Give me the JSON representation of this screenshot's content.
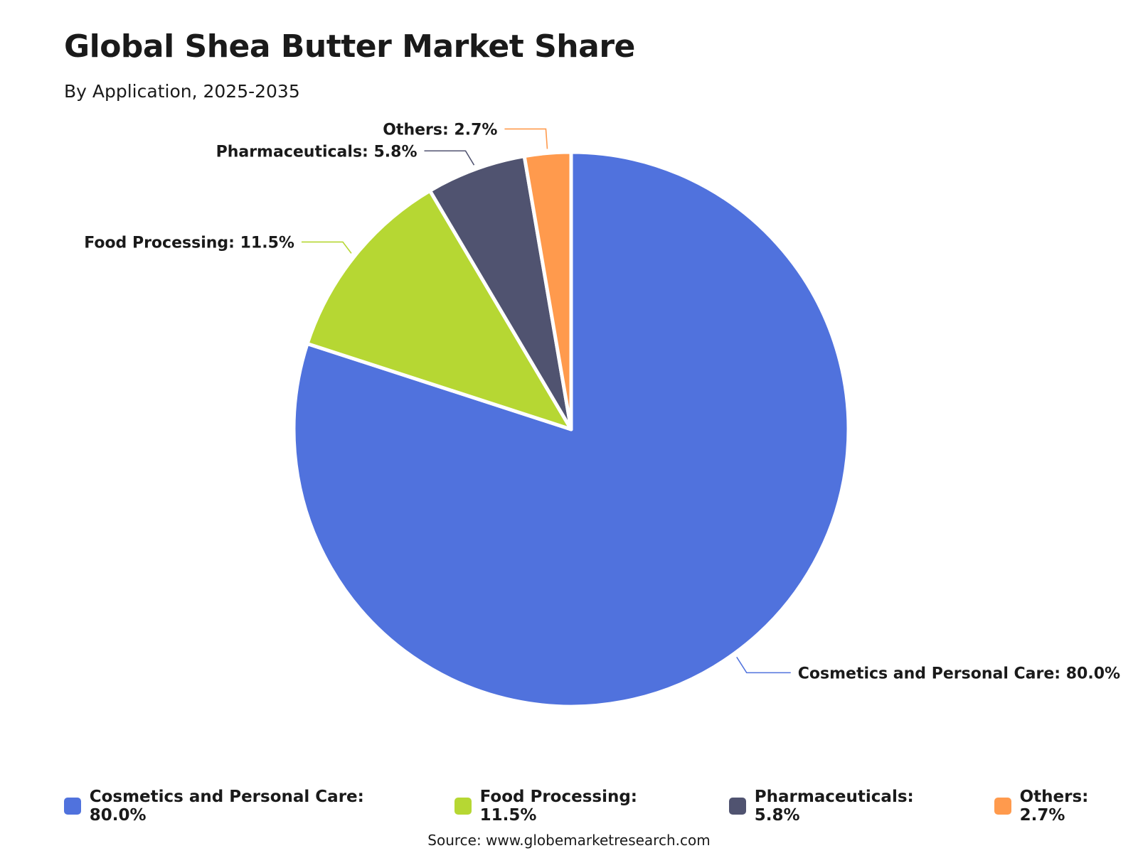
{
  "chart_data": {
    "type": "pie",
    "title": "Global Shea Butter Market Share",
    "subtitle": "By Application, 2025-2035",
    "slices": [
      {
        "label": "Cosmetics and Personal Care",
        "value": 80.0,
        "display": "Cosmetics and Personal Care: 80.0%",
        "color": "#5072DD"
      },
      {
        "label": "Food Processing",
        "value": 11.5,
        "display": "Food Processing: 11.5%",
        "color": "#B6D733"
      },
      {
        "label": "Pharmaceuticals",
        "value": 5.8,
        "display": "Pharmaceuticals: 5.8%",
        "color": "#505370"
      },
      {
        "label": "Others",
        "value": 2.7,
        "display": "Others: 2.7%",
        "color": "#FF9A4D"
      }
    ],
    "unit": "%",
    "legend_position": "bottom",
    "start_angle": "12 o'clock",
    "direction": "clockwise",
    "source": "Source: www.globemarketresearch.com"
  }
}
